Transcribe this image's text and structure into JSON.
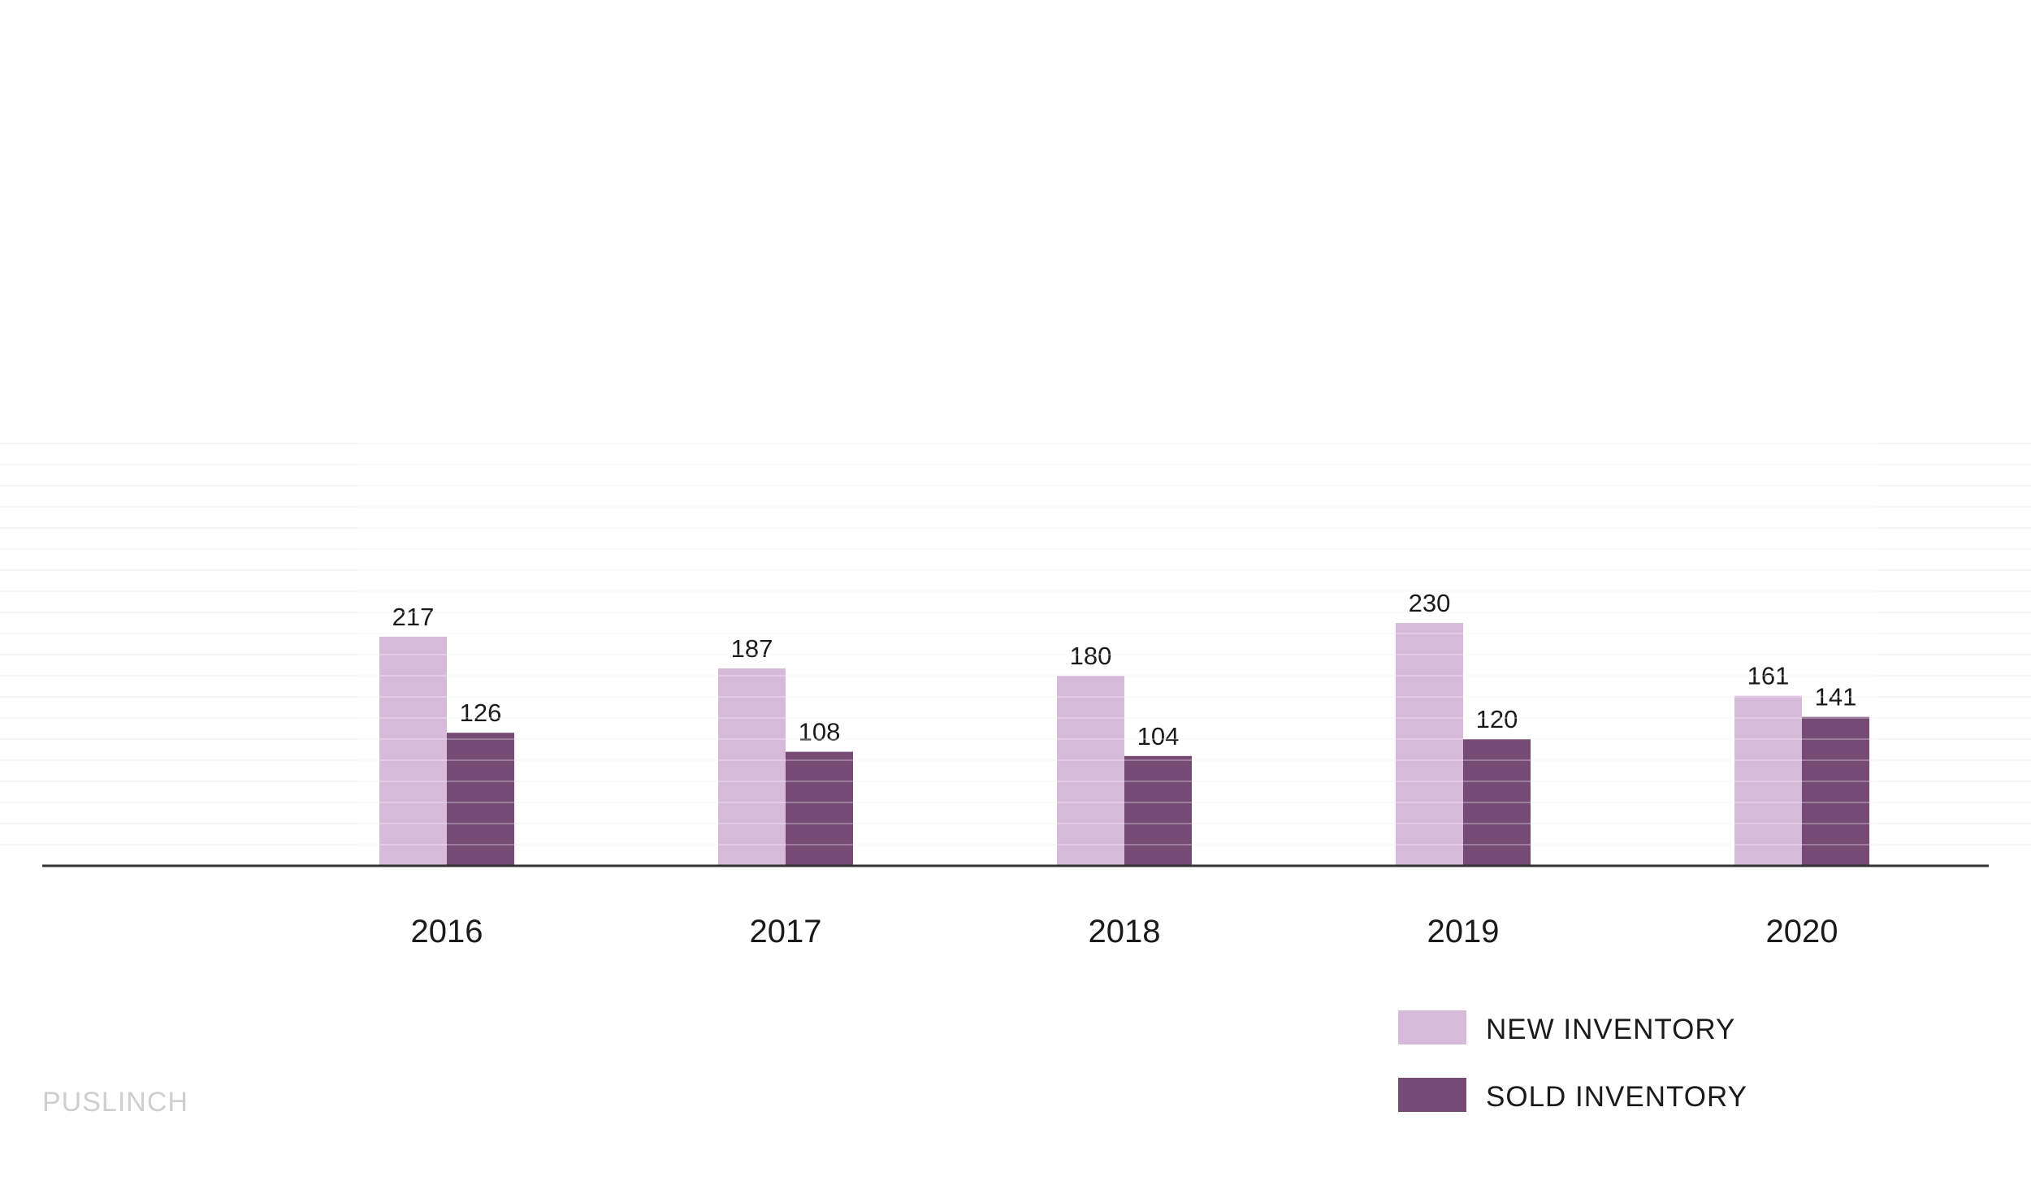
{
  "caption": "PUSLINCH",
  "colors": {
    "new": "#D7B9D9",
    "sold": "#754A74",
    "axis": "#333333",
    "grid": "#EDEDED"
  },
  "chart_data": {
    "type": "bar",
    "categories": [
      "2016",
      "2017",
      "2018",
      "2019",
      "2020"
    ],
    "series": [
      {
        "name": "NEW INVENTORY",
        "values": [
          217,
          187,
          180,
          230,
          161
        ]
      },
      {
        "name": "SOLD INVENTORY",
        "values": [
          126,
          108,
          104,
          120,
          141
        ]
      }
    ],
    "ylim": [
      0,
      400
    ],
    "grid": true,
    "legend": "bottom-right"
  }
}
